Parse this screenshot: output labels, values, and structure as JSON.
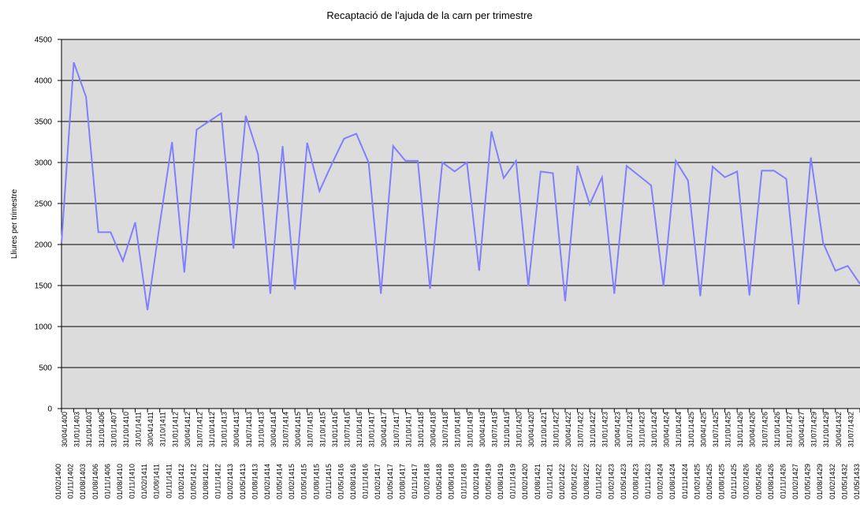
{
  "chart_data": {
    "type": "line",
    "title": "Recaptació de l'ajuda de la carn per trimestre",
    "y_label": "Lliures per trimestre",
    "categories": [
      [
        "01/02/1400",
        "30/04/1400"
      ],
      [
        "01/11/1402",
        "31/01/1403"
      ],
      [
        "01/08/1403",
        "31/10/1403"
      ],
      [
        "01/08/1406",
        "31/10/1406"
      ],
      [
        "01/11/1406",
        "31/01/1407"
      ],
      [
        "01/08/1410",
        "31/10/1410"
      ],
      [
        "01/11/1410",
        "31/01/1411"
      ],
      [
        "01/02/1411",
        "30/04/1411"
      ],
      [
        "01/08/1411",
        "31/10/1411"
      ],
      [
        "01/11/1411",
        "31/01/1412"
      ],
      [
        "01/02/1412",
        "30/04/1412"
      ],
      [
        "01/05/1412",
        "31/07/1412"
      ],
      [
        "01/08/1412",
        "31/10/1412"
      ],
      [
        "01/11/1412",
        "31/01/1413"
      ],
      [
        "01/02/1413",
        "30/04/1413"
      ],
      [
        "01/05/1413",
        "31/07/1413"
      ],
      [
        "01/08/1413",
        "31/10/1413"
      ],
      [
        "01/02/1414",
        "30/04/1414"
      ],
      [
        "01/05/1414",
        "31/07/1414"
      ],
      [
        "01/02/1415",
        "30/04/1415"
      ],
      [
        "01/05/1415",
        "31/07/1415"
      ],
      [
        "01/08/1415",
        "31/10/1415"
      ],
      [
        "01/11/1415",
        "31/01/1416"
      ],
      [
        "01/05/1416",
        "31/07/1416"
      ],
      [
        "01/08/1416",
        "31/10/1416"
      ],
      [
        "01/11/1416",
        "31/01/1417"
      ],
      [
        "01/02/1417",
        "30/04/1417"
      ],
      [
        "01/05/1417",
        "31/07/1417"
      ],
      [
        "01/08/1417",
        "31/10/1417"
      ],
      [
        "01/11/1417",
        "31/01/1418"
      ],
      [
        "01/02/1418",
        "30/04/1418"
      ],
      [
        "01/05/1418",
        "31/07/1418"
      ],
      [
        "01/08/1418",
        "31/10/1418"
      ],
      [
        "01/11/1418",
        "31/01/1419"
      ],
      [
        "01/02/1419",
        "30/04/1419"
      ],
      [
        "01/05/1419",
        "31/07/1419"
      ],
      [
        "01/08/1419",
        "31/10/1419"
      ],
      [
        "01/11/1419",
        "31/01/1420"
      ],
      [
        "01/02/1420",
        "30/04/1420"
      ],
      [
        "01/08/1421",
        "31/10/1421"
      ],
      [
        "01/11/1421",
        "31/01/1422"
      ],
      [
        "01/02/1422",
        "30/04/1422"
      ],
      [
        "01/05/1422",
        "31/07/1422"
      ],
      [
        "01/08/1422",
        "31/10/1422"
      ],
      [
        "01/11/1422",
        "31/01/1423"
      ],
      [
        "01/02/1423",
        "30/04/1423"
      ],
      [
        "01/05/1423",
        "31/07/1423"
      ],
      [
        "01/08/1423",
        "31/10/1423"
      ],
      [
        "01/11/1423",
        "31/01/1424"
      ],
      [
        "01/02/1424",
        "30/04/1424"
      ],
      [
        "01/08/1424",
        "31/10/1424"
      ],
      [
        "01/11/1424",
        "31/01/1425"
      ],
      [
        "01/02/1425",
        "30/04/1425"
      ],
      [
        "01/05/1425",
        "31/07/1425"
      ],
      [
        "01/08/1425",
        "31/10/1425"
      ],
      [
        "01/11/1425",
        "31/01/1426"
      ],
      [
        "01/02/1426",
        "30/04/1426"
      ],
      [
        "01/05/1426",
        "31/07/1426"
      ],
      [
        "01/08/1426",
        "31/10/1426"
      ],
      [
        "01/11/1426",
        "31/01/1427"
      ],
      [
        "01/02/1427",
        "30/04/1427"
      ],
      [
        "01/05/1429",
        "31/07/1429"
      ],
      [
        "01/08/1429",
        "31/10/1429"
      ],
      [
        "01/02/1432",
        "30/04/1432"
      ],
      [
        "01/05/1432",
        "31/07/1432"
      ],
      [
        "01/05/1433",
        "31/07/1433"
      ]
    ],
    "values": [
      2020,
      4220,
      3800,
      2150,
      2150,
      1800,
      2270,
      1200,
      2250,
      3250,
      1660,
      3400,
      3500,
      3600,
      1950,
      3570,
      3100,
      1400,
      3200,
      1450,
      3240,
      2650,
      2980,
      3290,
      3350,
      3000,
      1400,
      3200,
      3020,
      3020,
      1460,
      3000,
      2890,
      3000,
      1680,
      3380,
      2810,
      3020,
      1490,
      2890,
      2870,
      1310,
      2960,
      2490,
      2820,
      1400,
      2960,
      2840,
      2720,
      1490,
      3020,
      2780,
      1370,
      2950,
      2820,
      2890,
      1380,
      2900,
      2900,
      2800,
      1270,
      3060,
      2020,
      1680,
      1740,
      1520
    ],
    "color": "#8080ff",
    "background": "#dcdcdc",
    "ylim": [
      0,
      4500
    ],
    "yticks": [
      0,
      500,
      1000,
      1500,
      2000,
      2500,
      3000,
      3500,
      4000,
      4500
    ],
    "grid": true
  }
}
